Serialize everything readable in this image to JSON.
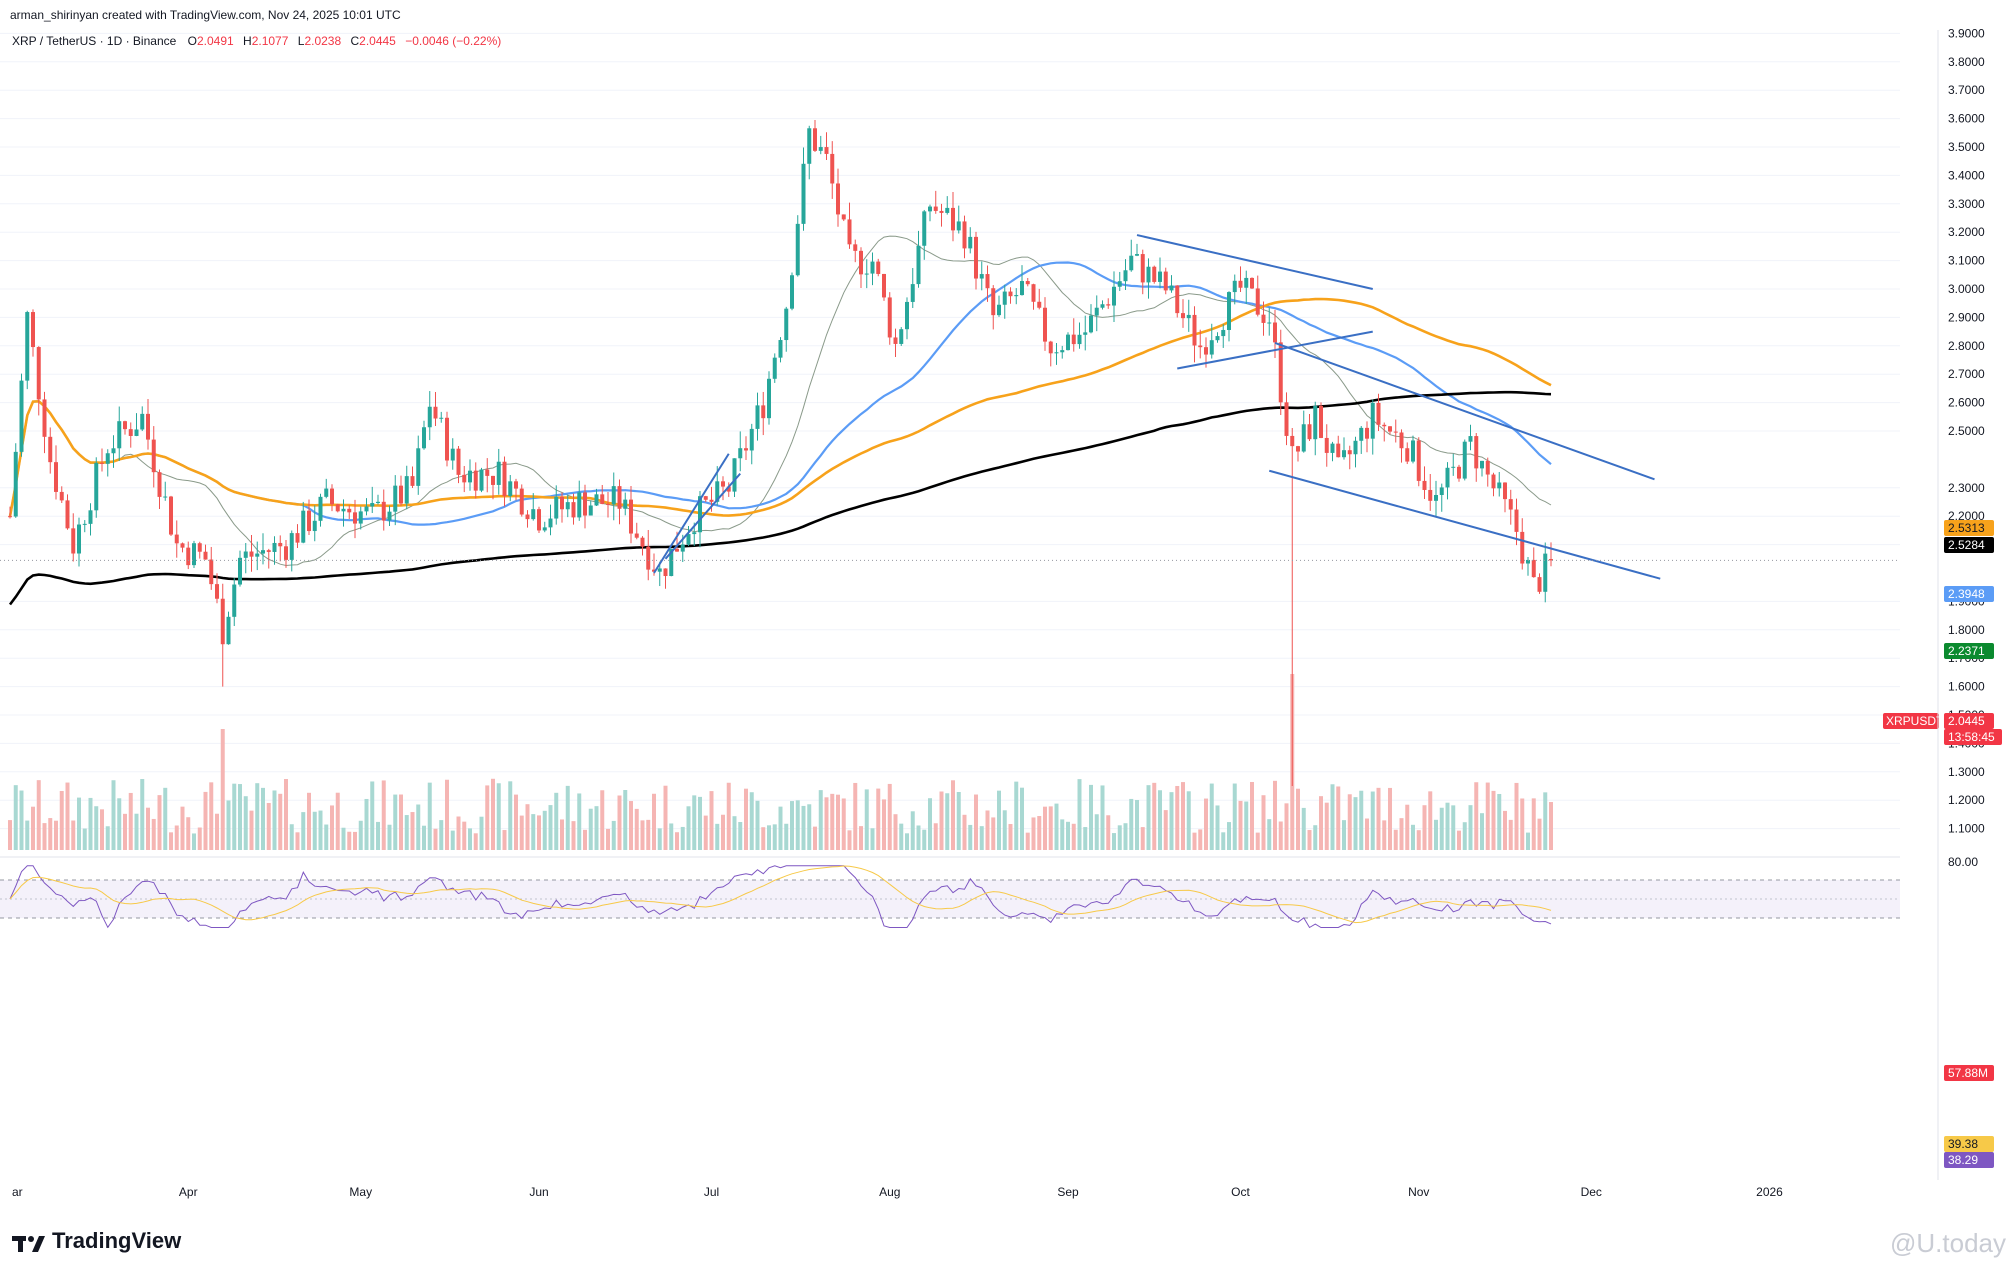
{
  "header": {
    "author_line": "arman_shirinyan created with TradingView.com, Nov 24, 2025 10:01 UTC"
  },
  "symbol_bar": {
    "symbol": "XRP / TetherUS · 1D · Binance",
    "open_label": "O",
    "open": "2.0491",
    "high_label": "H",
    "high": "2.1077",
    "low_label": "L",
    "low": "2.0238",
    "close_label": "C",
    "close": "2.0445",
    "change": "−0.0046 (−0.22%)"
  },
  "price_axis": {
    "ticks": [
      "3.9000",
      "3.8000",
      "3.7000",
      "3.6000",
      "3.5000",
      "3.4000",
      "3.3000",
      "3.2000",
      "3.1000",
      "3.0000",
      "2.9000",
      "2.8000",
      "2.7000",
      "2.6000",
      "2.5000",
      "2.3000",
      "2.2000",
      "2.1000",
      "1.9000",
      "1.8000",
      "1.7000",
      "1.6000",
      "1.5000",
      "1.4000",
      "1.3000",
      "1.2000",
      "1.1000"
    ]
  },
  "price_tags": [
    {
      "text": "2.5313",
      "color": "#f7a21b",
      "text_color": "#131722"
    },
    {
      "text": "2.5284",
      "color": "#000000",
      "text_color": "#ffffff"
    },
    {
      "text": "2.3948",
      "color": "#5b9cf6",
      "text_color": "#ffffff"
    },
    {
      "text": "2.2371",
      "color": "#0b8a2f",
      "text_color": "#ffffff"
    },
    {
      "text": "2.0445",
      "color": "#f23645",
      "text_color": "#ffffff"
    },
    {
      "text": "13:58:45",
      "color": "#f23645",
      "text_color": "#ffffff"
    },
    {
      "text": "57.88M",
      "color": "#f23645",
      "text_color": "#ffffff"
    }
  ],
  "symbol_tag": {
    "text": "XRPUSDT",
    "color": "#f23645"
  },
  "rsi_axis": {
    "top_label": "80.00",
    "tags": [
      {
        "text": "39.38",
        "color": "#f7c948",
        "text_color": "#131722"
      },
      {
        "text": "38.29",
        "color": "#7e57c2",
        "text_color": "#ffffff"
      }
    ]
  },
  "time_axis": {
    "labels": [
      "ar",
      "Apr",
      "May",
      "Jun",
      "Jul",
      "Aug",
      "Sep",
      "Oct",
      "Nov",
      "Dec",
      "2026"
    ]
  },
  "branding": {
    "logo_text": "TradingView",
    "watermark": "@U.today"
  },
  "colors": {
    "up": "#26a69a",
    "down": "#ef5350",
    "ma_fast": "#8a9a8a",
    "ma_blue": "#5b9cf6",
    "ma_orange": "#f7a21b",
    "ma_black": "#000000",
    "trendline": "#3a6fc4",
    "rsi": "#7e57c2",
    "rsi_ma": "#f7c948"
  },
  "chart_data": {
    "type": "candlestick",
    "period": "1D",
    "symbol": "XRPUSDT",
    "date_range": [
      "2025-03-01",
      "2025-11-24"
    ],
    "price_range": [
      1.7,
      3.95
    ],
    "last": {
      "open": 2.0491,
      "high": 2.1077,
      "low": 2.0238,
      "close": 2.0445
    },
    "moving_averages": [
      {
        "color": "ma_orange",
        "last": 2.5313
      },
      {
        "color": "ma_black",
        "last": 2.5284
      },
      {
        "color": "ma_blue",
        "last": 2.3948
      },
      {
        "color": "ma_fast",
        "last": 2.2371
      }
    ],
    "volume_last": "57.88M",
    "rsi": {
      "value": 38.29,
      "ma": 39.38,
      "upper": 70,
      "lower": 30
    },
    "anchors": [
      [
        "2025-03-01",
        2.2
      ],
      [
        "2025-03-04",
        2.9
      ],
      [
        "2025-03-08",
        2.4
      ],
      [
        "2025-03-12",
        2.1
      ],
      [
        "2025-03-18",
        2.45
      ],
      [
        "2025-03-24",
        2.55
      ],
      [
        "2025-03-30",
        2.1
      ],
      [
        "2025-04-04",
        2.05
      ],
      [
        "2025-04-07",
        1.8
      ],
      [
        "2025-04-10",
        2.05
      ],
      [
        "2025-04-18",
        2.1
      ],
      [
        "2025-04-25",
        2.25
      ],
      [
        "2025-05-03",
        2.2
      ],
      [
        "2025-05-10",
        2.3
      ],
      [
        "2025-05-13",
        2.6
      ],
      [
        "2025-05-18",
        2.35
      ],
      [
        "2025-05-25",
        2.35
      ],
      [
        "2025-06-01",
        2.2
      ],
      [
        "2025-06-08",
        2.25
      ],
      [
        "2025-06-15",
        2.25
      ],
      [
        "2025-06-22",
        2.0
      ],
      [
        "2025-06-28",
        2.2
      ],
      [
        "2025-07-04",
        2.3
      ],
      [
        "2025-07-10",
        2.6
      ],
      [
        "2025-07-14",
        2.95
      ],
      [
        "2025-07-18",
        3.55
      ],
      [
        "2025-07-21",
        3.45
      ],
      [
        "2025-07-25",
        3.1
      ],
      [
        "2025-07-29",
        3.1
      ],
      [
        "2025-08-02",
        2.8
      ],
      [
        "2025-08-08",
        3.3
      ],
      [
        "2025-08-14",
        3.2
      ],
      [
        "2025-08-19",
        2.9
      ],
      [
        "2025-08-24",
        3.0
      ],
      [
        "2025-08-29",
        2.8
      ],
      [
        "2025-09-04",
        2.85
      ],
      [
        "2025-09-12",
        3.1
      ],
      [
        "2025-09-18",
        3.0
      ],
      [
        "2025-09-24",
        2.8
      ],
      [
        "2025-10-01",
        3.0
      ],
      [
        "2025-10-06",
        2.9
      ],
      [
        "2025-10-10",
        2.4
      ],
      [
        "2025-10-14",
        2.55
      ],
      [
        "2025-10-18",
        2.35
      ],
      [
        "2025-10-24",
        2.55
      ],
      [
        "2025-10-30",
        2.45
      ],
      [
        "2025-11-04",
        2.25
      ],
      [
        "2025-11-10",
        2.45
      ],
      [
        "2025-11-14",
        2.3
      ],
      [
        "2025-11-18",
        2.15
      ],
      [
        "2025-11-21",
        1.95
      ],
      [
        "2025-11-24",
        2.04
      ]
    ],
    "trendlines": [
      {
        "from": [
          "2025-06-21",
          2.0
        ],
        "to": [
          "2025-07-04",
          2.42
        ]
      },
      {
        "from": [
          "2025-06-23",
          2.05
        ],
        "to": [
          "2025-07-06",
          2.35
        ]
      },
      {
        "from": [
          "2025-09-13",
          3.19
        ],
        "to": [
          "2025-10-24",
          3.0
        ]
      },
      {
        "from": [
          "2025-09-20",
          2.72
        ],
        "to": [
          "2025-10-24",
          2.85
        ]
      },
      {
        "from": [
          "2025-10-07",
          2.81
        ],
        "to": [
          "2025-12-12",
          2.33
        ]
      },
      {
        "from": [
          "2025-10-06",
          2.36
        ],
        "to": [
          "2025-12-13",
          1.98
        ]
      }
    ]
  }
}
